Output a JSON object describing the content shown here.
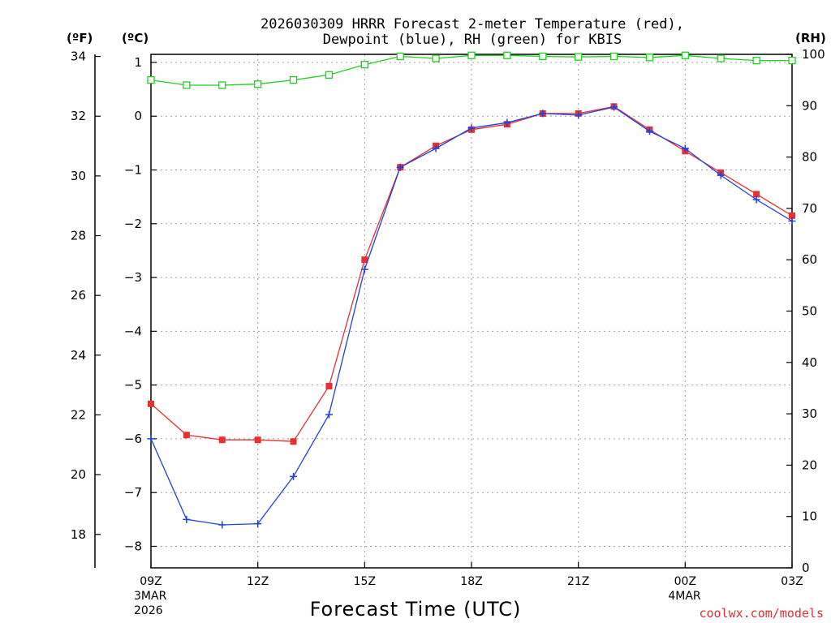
{
  "chart_data": {
    "type": "line",
    "title_line1": "2026030309 HRRR Forecast 2-meter Temperature (red),",
    "title_line2": "Dewpoint (blue), RH (green) for KBIS",
    "unit_f": "(ºF)",
    "unit_c": "(ºC)",
    "unit_rh": "(RH)",
    "xlabel": "Forecast Time (UTC)",
    "credit": "coolwx.com/models",
    "x_hours": [
      0,
      1,
      2,
      3,
      4,
      5,
      6,
      7,
      8,
      9,
      10,
      11,
      12,
      13,
      14,
      15,
      16,
      17,
      18
    ],
    "x_ticks": [
      {
        "h": 0,
        "label": "09Z",
        "sub1": "3MAR",
        "sub2": "2026"
      },
      {
        "h": 3,
        "label": "12Z",
        "sub1": "",
        "sub2": ""
      },
      {
        "h": 6,
        "label": "15Z",
        "sub1": "",
        "sub2": ""
      },
      {
        "h": 9,
        "label": "18Z",
        "sub1": "",
        "sub2": ""
      },
      {
        "h": 12,
        "label": "21Z",
        "sub1": "",
        "sub2": ""
      },
      {
        "h": 15,
        "label": "00Z",
        "sub1": "4MAR",
        "sub2": ""
      },
      {
        "h": 18,
        "label": "03Z",
        "sub1": "",
        "sub2": ""
      }
    ],
    "celsius_range": [
      -8.4,
      1.15
    ],
    "celsius_ticks": [
      "1",
      "0",
      "−1",
      "−2",
      "−3",
      "−4",
      "−5",
      "−6",
      "−7",
      "−8"
    ],
    "celsius_tick_values": [
      1,
      0,
      -1,
      -2,
      -3,
      -4,
      -5,
      -6,
      -7,
      -8
    ],
    "fahrenheit_ticks": [
      "34",
      "32",
      "30",
      "28",
      "26",
      "24",
      "22",
      "20",
      "18"
    ],
    "fahrenheit_tick_values": [
      34,
      32,
      30,
      28,
      26,
      24,
      22,
      20,
      18
    ],
    "rh_range": [
      0,
      100
    ],
    "rh_ticks": [
      "100",
      "90",
      "80",
      "70",
      "60",
      "50",
      "40",
      "30",
      "20",
      "10",
      "0"
    ],
    "rh_tick_values": [
      100,
      90,
      80,
      70,
      60,
      50,
      40,
      30,
      20,
      10,
      0
    ],
    "series": [
      {
        "name": "2-meter Temperature",
        "color": "#e83030",
        "marker": "square",
        "values": [
          -5.35,
          -5.93,
          -6.02,
          -6.02,
          -6.05,
          -5.02,
          -2.67,
          -0.95,
          -0.55,
          -0.25,
          -0.15,
          0.05,
          0.05,
          0.18,
          -0.25,
          -0.65,
          -1.05,
          -1.45,
          -1.85
        ]
      },
      {
        "name": "Dewpoint",
        "color": "#2040e0",
        "marker": "plus",
        "values": [
          -6.0,
          -7.5,
          -7.6,
          -7.58,
          -6.7,
          -5.55,
          -2.85,
          -0.95,
          -0.6,
          -0.22,
          -0.12,
          0.05,
          0.02,
          0.17,
          -0.28,
          -0.6,
          -1.1,
          -1.55,
          -1.95
        ]
      },
      {
        "name": "RH",
        "color": "#20d020",
        "marker": "open-square",
        "values": [
          95,
          94,
          94,
          94.2,
          95,
          96,
          98,
          99.6,
          99.2,
          99.8,
          99.8,
          99.6,
          99.5,
          99.6,
          99.4,
          99.8,
          99.2,
          98.8,
          98.8
        ]
      }
    ]
  }
}
